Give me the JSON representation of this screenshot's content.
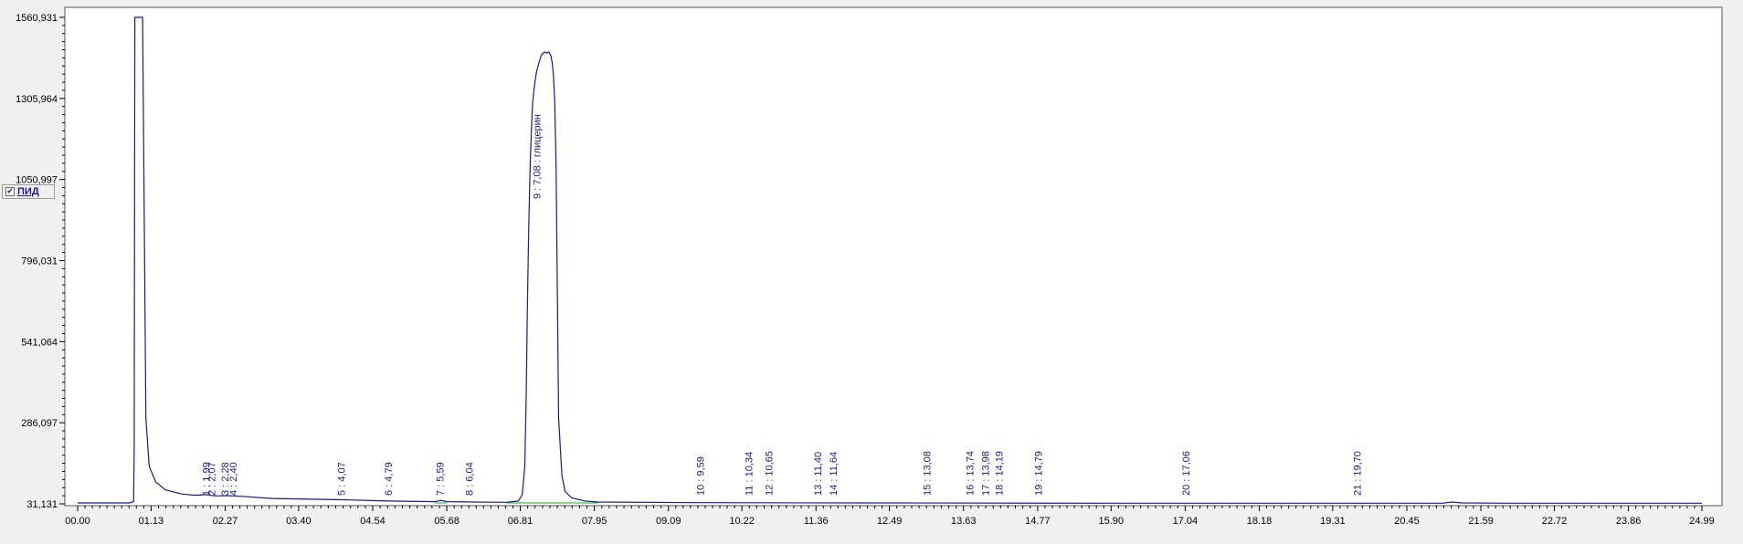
{
  "chart_data": {
    "type": "line",
    "y_ticks": [
      "1560,931",
      "1305,964",
      "1050,997",
      "796,031",
      "541,064",
      "286,097",
      "31,131"
    ],
    "y_tick_values": [
      1560.931,
      1305.964,
      1050.997,
      796.031,
      541.064,
      286.097,
      31.131
    ],
    "x_ticks": [
      "00.00",
      "01.13",
      "02.27",
      "03.40",
      "04.54",
      "05.68",
      "06.81",
      "07.95",
      "09.09",
      "10.22",
      "11.36",
      "12.49",
      "13.63",
      "14.77",
      "15.90",
      "17.04",
      "18.18",
      "19.31",
      "20.45",
      "21.59",
      "22.72",
      "23.86",
      "24.99"
    ],
    "xlim": [
      0,
      24.99
    ],
    "ylim": [
      31.131,
      1560.931
    ],
    "grid": false,
    "legend": {
      "checked": true,
      "label": "ПИД",
      "position": "left"
    },
    "colors": {
      "signal": "#1a1a8a",
      "baseline": "#22aa22",
      "peak_label": "#1a1a8a",
      "axis": "#000000"
    },
    "series": [
      {
        "name": "ПИД",
        "x": [
          0.0,
          0.8,
          0.86,
          0.87,
          0.88,
          0.9,
          0.92,
          0.94,
          0.97,
          1.0,
          1.05,
          1.1,
          1.2,
          1.35,
          1.6,
          1.8,
          1.99,
          2.07,
          2.15,
          2.28,
          2.4,
          2.5,
          3.0,
          4.07,
          4.79,
          5.5,
          5.59,
          5.68,
          6.04,
          6.6,
          6.78,
          6.84,
          6.88,
          6.9,
          6.92,
          6.94,
          6.96,
          6.98,
          7.0,
          7.03,
          7.06,
          7.1,
          7.13,
          7.16,
          7.19,
          7.22,
          7.25,
          7.28,
          7.3,
          7.32,
          7.34,
          7.36,
          7.38,
          7.4,
          7.45,
          7.5,
          7.6,
          7.8,
          8.0,
          9.59,
          12.0,
          16.0,
          20.0,
          21.0,
          21.15,
          21.3,
          22.0,
          24.99
        ],
        "y": [
          34,
          34,
          38,
          200,
          1560.931,
          1560.931,
          1560.931,
          1560.931,
          1560.931,
          1560.931,
          300,
          150,
          100,
          75,
          62,
          58,
          60,
          57,
          56,
          57,
          56,
          55,
          48,
          44,
          40,
          38,
          42,
          38,
          37,
          36,
          40,
          60,
          150,
          350,
          650,
          900,
          1080,
          1200,
          1290,
          1350,
          1390,
          1420,
          1440,
          1448,
          1452,
          1448,
          1452,
          1440,
          1420,
          1380,
          1300,
          1100,
          700,
          300,
          120,
          70,
          50,
          40,
          37,
          35,
          34,
          33,
          33,
          33,
          37,
          34,
          33,
          33
        ]
      }
    ],
    "peaks": [
      {
        "label": "1 : 1,99",
        "x": 1.99
      },
      {
        "label": "2 : 2,07",
        "x": 2.07
      },
      {
        "label": "3 : 2,28",
        "x": 2.28
      },
      {
        "label": "4 : 2,40",
        "x": 2.4
      },
      {
        "label": "5 : 4,07",
        "x": 4.07
      },
      {
        "label": "6 : 4,79",
        "x": 4.79
      },
      {
        "label": "7 : 5,59",
        "x": 5.59
      },
      {
        "label": "8 : 6,04",
        "x": 6.04
      },
      {
        "label": "9 : 7,08 : глицерин",
        "x": 7.08,
        "major": true
      },
      {
        "label": "10 : 9,59",
        "x": 9.59
      },
      {
        "label": "11 : 10,34",
        "x": 10.34
      },
      {
        "label": "12 : 10,65",
        "x": 10.65
      },
      {
        "label": "13 : 11,40",
        "x": 11.4
      },
      {
        "label": "14 : 11,64",
        "x": 11.64
      },
      {
        "label": "15 : 13,08",
        "x": 13.08
      },
      {
        "label": "16 : 13,74",
        "x": 13.74
      },
      {
        "label": "17 : 13,98",
        "x": 13.98
      },
      {
        "label": "18 : 14,19",
        "x": 14.19
      },
      {
        "label": "19 : 14,79",
        "x": 14.79
      },
      {
        "label": "20 : 17,06",
        "x": 17.06
      },
      {
        "label": "21 : 19,70",
        "x": 19.7
      }
    ]
  }
}
